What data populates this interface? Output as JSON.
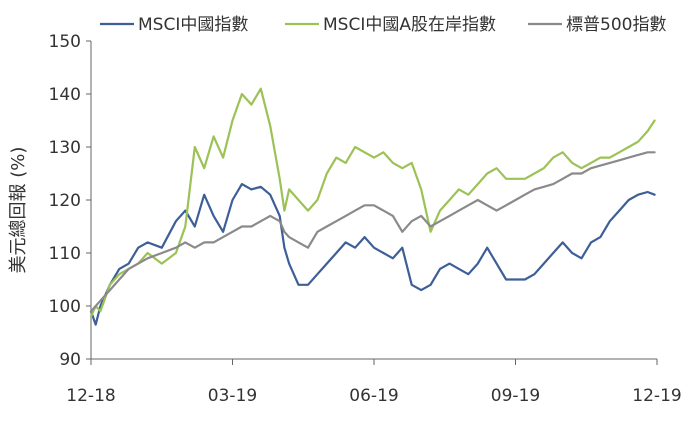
{
  "chart_data": {
    "type": "line",
    "title": "",
    "ylabel": "美元總回報 (%)",
    "xlabel": "",
    "ylim": [
      90,
      150
    ],
    "yticks": [
      90,
      100,
      110,
      120,
      130,
      140,
      150
    ],
    "xlim": [
      0,
      12
    ],
    "xticks": [
      {
        "x": 0,
        "label": "12-18"
      },
      {
        "x": 3,
        "label": "03-19"
      },
      {
        "x": 6,
        "label": "06-19"
      },
      {
        "x": 9,
        "label": "09-19"
      },
      {
        "x": 12,
        "label": "12-19"
      }
    ],
    "grid": false,
    "legend_position": "top",
    "series": [
      {
        "name": "MSCI中國指數",
        "color": "#3d5e97",
        "x": [
          0,
          0.1,
          0.2,
          0.4,
          0.6,
          0.8,
          1.0,
          1.2,
          1.5,
          1.8,
          2.0,
          2.2,
          2.4,
          2.6,
          2.8,
          3.0,
          3.2,
          3.4,
          3.6,
          3.8,
          4.0,
          4.1,
          4.2,
          4.4,
          4.6,
          4.8,
          5.0,
          5.2,
          5.4,
          5.6,
          5.8,
          6.0,
          6.2,
          6.4,
          6.6,
          6.8,
          7.0,
          7.2,
          7.4,
          7.6,
          7.8,
          8.0,
          8.2,
          8.4,
          8.6,
          8.8,
          9.0,
          9.2,
          9.4,
          9.6,
          9.8,
          10.0,
          10.2,
          10.4,
          10.6,
          10.8,
          11.0,
          11.2,
          11.4,
          11.6,
          11.8,
          11.95
        ],
        "values": [
          99,
          96.5,
          100,
          104,
          107,
          108,
          111,
          112,
          111,
          116,
          118,
          115,
          121,
          117,
          114,
          120,
          123,
          122,
          122.5,
          121,
          117,
          111,
          108,
          104,
          104,
          106,
          108,
          110,
          112,
          111,
          113,
          111,
          110,
          109,
          111,
          104,
          103,
          104,
          107,
          108,
          107,
          106,
          108,
          111,
          108,
          105,
          105,
          105,
          106,
          108,
          110,
          112,
          110,
          109,
          112,
          113,
          116,
          118,
          120,
          121,
          121.5,
          121
        ]
      },
      {
        "name": "MSCI中國A股在岸指數",
        "color": "#9cc256",
        "x": [
          0,
          0.1,
          0.2,
          0.4,
          0.6,
          0.8,
          1.0,
          1.2,
          1.5,
          1.8,
          2.0,
          2.2,
          2.4,
          2.6,
          2.8,
          3.0,
          3.2,
          3.4,
          3.6,
          3.8,
          4.0,
          4.1,
          4.2,
          4.4,
          4.6,
          4.8,
          5.0,
          5.2,
          5.4,
          5.6,
          5.8,
          6.0,
          6.2,
          6.4,
          6.6,
          6.8,
          7.0,
          7.2,
          7.4,
          7.6,
          7.8,
          8.0,
          8.2,
          8.4,
          8.6,
          8.8,
          9.0,
          9.2,
          9.4,
          9.6,
          9.8,
          10.0,
          10.2,
          10.4,
          10.6,
          10.8,
          11.0,
          11.2,
          11.4,
          11.6,
          11.8,
          11.95
        ],
        "values": [
          98,
          100,
          99,
          104,
          106,
          107,
          108,
          110,
          108,
          110,
          115,
          130,
          126,
          132,
          128,
          135,
          140,
          138,
          141,
          134,
          124,
          118,
          122,
          120,
          118,
          120,
          125,
          128,
          127,
          130,
          129,
          128,
          129,
          127,
          126,
          127,
          122,
          114,
          118,
          120,
          122,
          121,
          123,
          125,
          126,
          124,
          124,
          124,
          125,
          126,
          128,
          129,
          127,
          126,
          127,
          128,
          128,
          129,
          130,
          131,
          133,
          135
        ]
      },
      {
        "name": "標普500指數",
        "color": "#8a8a8a",
        "x": [
          0,
          0.1,
          0.2,
          0.4,
          0.6,
          0.8,
          1.0,
          1.2,
          1.5,
          1.8,
          2.0,
          2.2,
          2.4,
          2.6,
          2.8,
          3.0,
          3.2,
          3.4,
          3.6,
          3.8,
          4.0,
          4.1,
          4.2,
          4.4,
          4.6,
          4.8,
          5.0,
          5.2,
          5.4,
          5.6,
          5.8,
          6.0,
          6.2,
          6.4,
          6.6,
          6.8,
          7.0,
          7.2,
          7.4,
          7.6,
          7.8,
          8.0,
          8.2,
          8.4,
          8.6,
          8.8,
          9.0,
          9.2,
          9.4,
          9.6,
          9.8,
          10.0,
          10.2,
          10.4,
          10.6,
          10.8,
          11.0,
          11.2,
          11.4,
          11.6,
          11.8,
          11.95
        ],
        "values": [
          99,
          100,
          101,
          103,
          105,
          107,
          108,
          109,
          110,
          111,
          112,
          111,
          112,
          112,
          113,
          114,
          115,
          115,
          116,
          117,
          116,
          114,
          113,
          112,
          111,
          114,
          115,
          116,
          117,
          118,
          119,
          119,
          118,
          117,
          114,
          116,
          117,
          115,
          116,
          117,
          118,
          119,
          120,
          119,
          118,
          119,
          120,
          121,
          122,
          122.5,
          123,
          124,
          125,
          125,
          126,
          126.5,
          127,
          127.5,
          128,
          128.5,
          129,
          129
        ]
      }
    ]
  }
}
